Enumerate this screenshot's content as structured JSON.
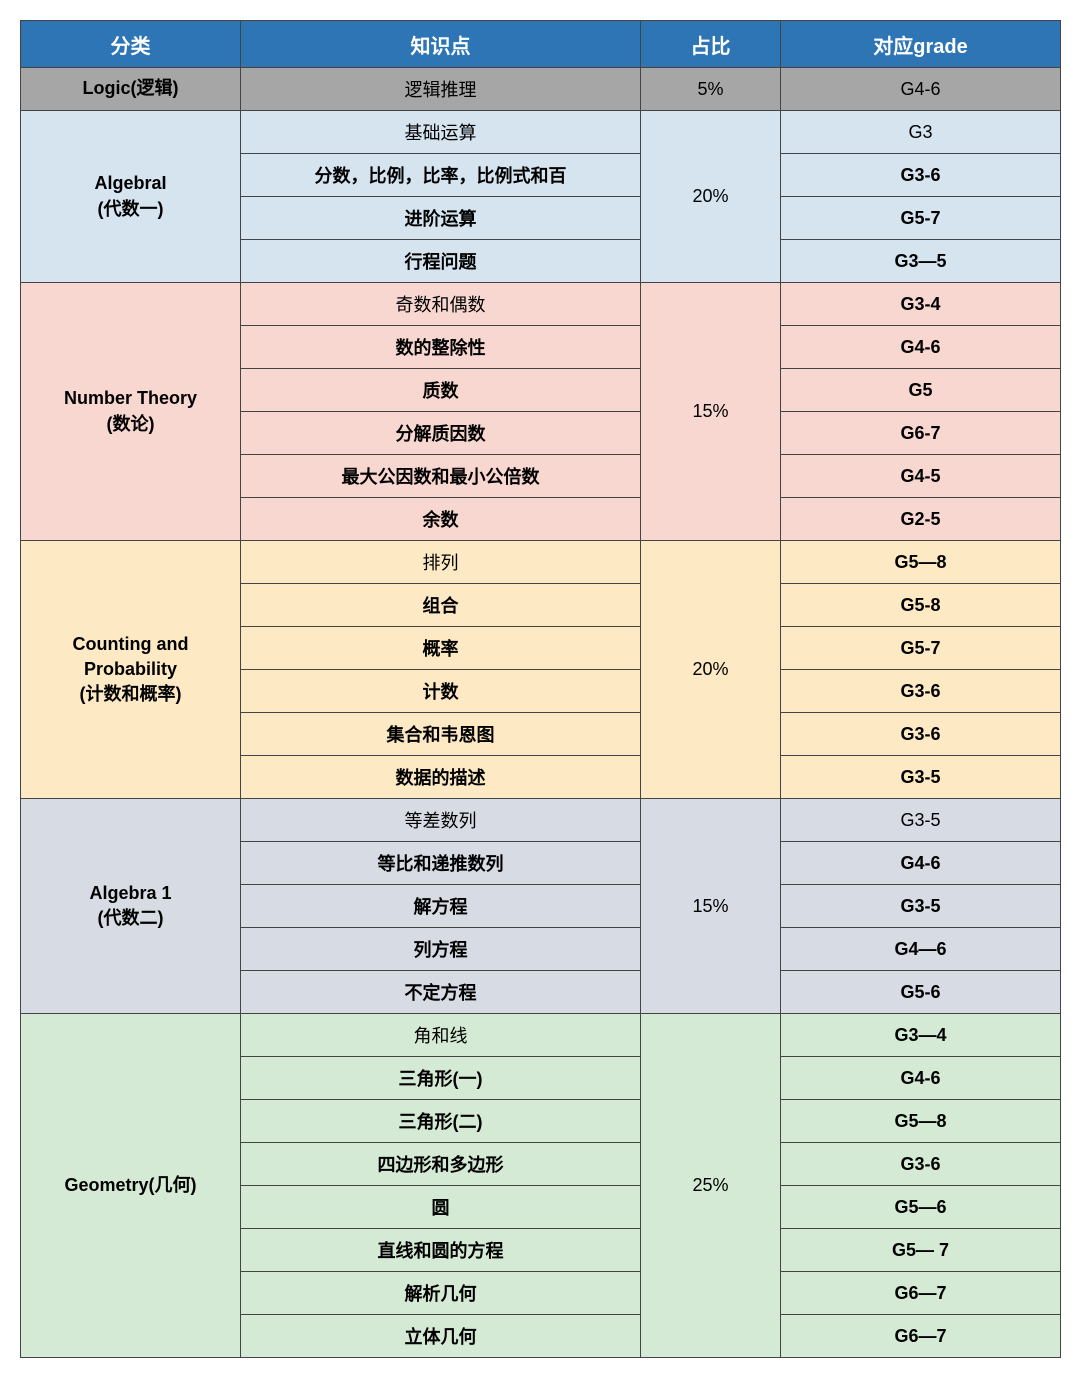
{
  "headers": {
    "c1": "分类",
    "c2": "知识点",
    "c3": "占比",
    "c4": "对应grade"
  },
  "colors": {
    "header_bg": "#2e75b6",
    "header_fg": "#ffffff",
    "logic": "#a6a6a6",
    "algebra1": "#d6e4f0",
    "number_theory": "#f8d7d0",
    "counting": "#fde9c4",
    "algebra2": "#d6dbe4",
    "geometry": "#d5ead5"
  },
  "sections": [
    {
      "key": "logic",
      "category": "Logic(逻辑)",
      "percent": "5%",
      "rows": [
        {
          "topic": "逻辑推理",
          "grade": "G4-6",
          "topic_bold": false,
          "grade_bold": false
        }
      ]
    },
    {
      "key": "algebra1",
      "category": "AlgebraI\n(代数一)",
      "percent": "20%",
      "rows": [
        {
          "topic": "基础运算",
          "grade": "G3",
          "topic_bold": false,
          "grade_bold": false
        },
        {
          "topic": "分数，比例，比率，比例式和百",
          "grade": "G3-6",
          "topic_bold": true,
          "grade_bold": true
        },
        {
          "topic": "进阶运算",
          "grade": "G5-7",
          "topic_bold": true,
          "grade_bold": true
        },
        {
          "topic": "行程问题",
          "grade": "G3—5",
          "topic_bold": true,
          "grade_bold": true
        }
      ]
    },
    {
      "key": "number_theory",
      "category": "Number Theory\n(数论)",
      "percent": "15%",
      "rows": [
        {
          "topic": "奇数和偶数",
          "grade": "G3-4",
          "topic_bold": false,
          "grade_bold": true
        },
        {
          "topic": "数的整除性",
          "grade": "G4-6",
          "topic_bold": true,
          "grade_bold": true
        },
        {
          "topic": "质数",
          "grade": "G5",
          "topic_bold": true,
          "grade_bold": true
        },
        {
          "topic": "分解质因数",
          "grade": "G6-7",
          "topic_bold": true,
          "grade_bold": true
        },
        {
          "topic": "最大公因数和最小公倍数",
          "grade": "G4-5",
          "topic_bold": true,
          "grade_bold": true
        },
        {
          "topic": "余数",
          "grade": "G2-5",
          "topic_bold": true,
          "grade_bold": true
        }
      ]
    },
    {
      "key": "counting",
      "category": "Counting and\nProbability\n(计数和概率)",
      "percent": "20%",
      "rows": [
        {
          "topic": "排列",
          "grade": "G5—8",
          "topic_bold": false,
          "grade_bold": true
        },
        {
          "topic": "组合",
          "grade": "G5-8",
          "topic_bold": true,
          "grade_bold": true
        },
        {
          "topic": "概率",
          "grade": "G5-7",
          "topic_bold": true,
          "grade_bold": true
        },
        {
          "topic": "计数",
          "grade": "G3-6",
          "topic_bold": true,
          "grade_bold": true
        },
        {
          "topic": "集合和韦恩图",
          "grade": "G3-6",
          "topic_bold": true,
          "grade_bold": true
        },
        {
          "topic": "数据的描述",
          "grade": "G3-5",
          "topic_bold": true,
          "grade_bold": true
        }
      ]
    },
    {
      "key": "algebra2",
      "category": "Algebra 1\n(代数二)",
      "percent": "15%",
      "rows": [
        {
          "topic": "等差数列",
          "grade": "G3-5",
          "topic_bold": false,
          "grade_bold": false
        },
        {
          "topic": "等比和递推数列",
          "grade": "G4-6",
          "topic_bold": true,
          "grade_bold": true
        },
        {
          "topic": "解方程",
          "grade": "G3-5",
          "topic_bold": true,
          "grade_bold": true
        },
        {
          "topic": "列方程",
          "grade": "G4—6",
          "topic_bold": true,
          "grade_bold": true
        },
        {
          "topic": "不定方程",
          "grade": "G5-6",
          "topic_bold": true,
          "grade_bold": true
        }
      ]
    },
    {
      "key": "geometry",
      "category": "Geometry(几何)",
      "percent": "25%",
      "rows": [
        {
          "topic": "角和线",
          "grade": "G3—4",
          "topic_bold": false,
          "grade_bold": true
        },
        {
          "topic": "三角形(一)",
          "grade": "G4-6",
          "topic_bold": true,
          "grade_bold": true
        },
        {
          "topic": "三角形(二)",
          "grade": "G5—8",
          "topic_bold": true,
          "grade_bold": true
        },
        {
          "topic": "四边形和多边形",
          "grade": "G3-6",
          "topic_bold": true,
          "grade_bold": true
        },
        {
          "topic": "圆",
          "grade": "G5—6",
          "topic_bold": true,
          "grade_bold": true
        },
        {
          "topic": "直线和圆的方程",
          "grade": "G5— 7",
          "topic_bold": true,
          "grade_bold": true
        },
        {
          "topic": "解析几何",
          "grade": "G6—7",
          "topic_bold": true,
          "grade_bold": true
        },
        {
          "topic": "立体几何",
          "grade": "G6—7",
          "topic_bold": true,
          "grade_bold": true
        }
      ]
    }
  ]
}
